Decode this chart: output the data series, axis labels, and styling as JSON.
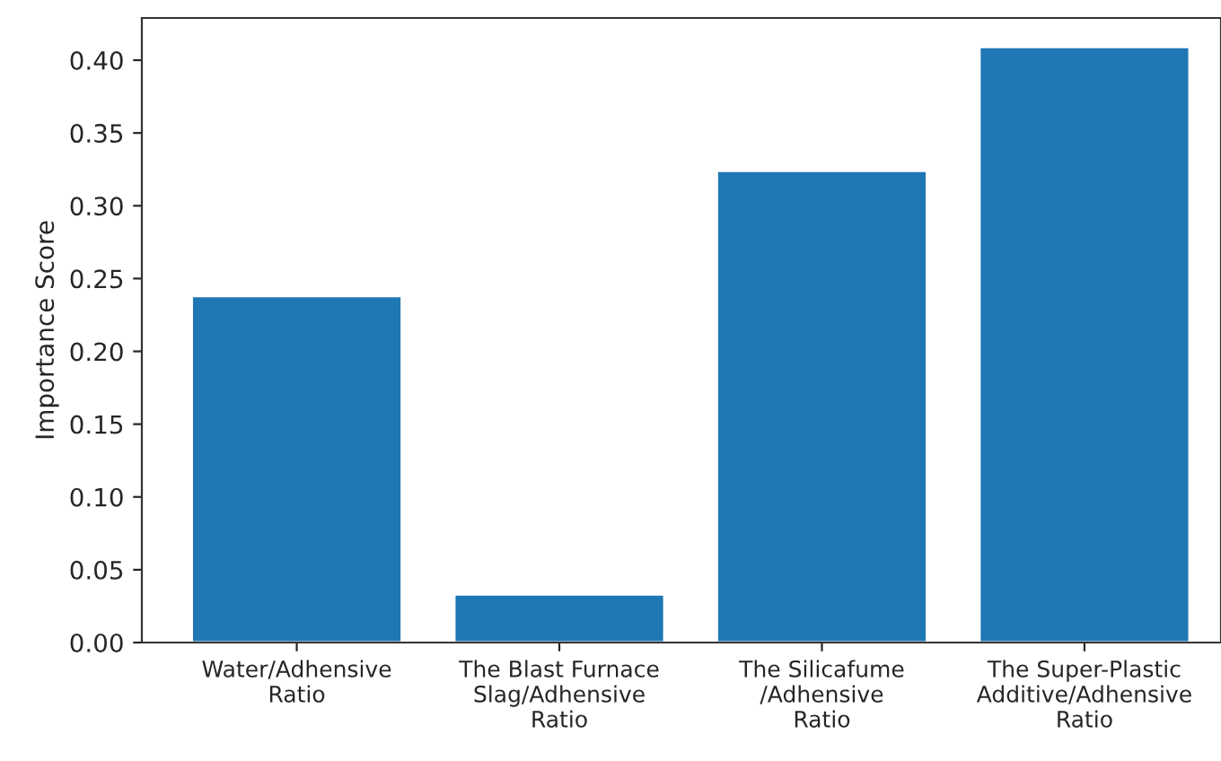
{
  "chart_data": {
    "type": "bar",
    "ylabel": "Importance Score",
    "categories": [
      "Water/Adhensive\nRatio",
      "The Blast Furnace\nSlag/Adhensive\nRatio",
      "The Silicafume\n/Adhensive\nRatio",
      "The Super-Plastic\nAdditive/Adhensive\nRatio"
    ],
    "values": [
      0.238,
      0.033,
      0.324,
      0.409
    ],
    "color": "#1f77b4",
    "ylim": [
      0,
      0.429
    ],
    "yticks": [
      {
        "value": 0,
        "label": "0.00"
      },
      {
        "value": 0.05,
        "label": "0.05"
      },
      {
        "value": 0.1,
        "label": "0.10"
      },
      {
        "value": 0.15,
        "label": "0.15"
      },
      {
        "value": 0.2,
        "label": "0.20"
      },
      {
        "value": 0.25,
        "label": "0.25"
      },
      {
        "value": 0.3,
        "label": "0.30"
      },
      {
        "value": 0.35,
        "label": "0.35"
      },
      {
        "value": 0.4,
        "label": "0.40"
      }
    ]
  }
}
